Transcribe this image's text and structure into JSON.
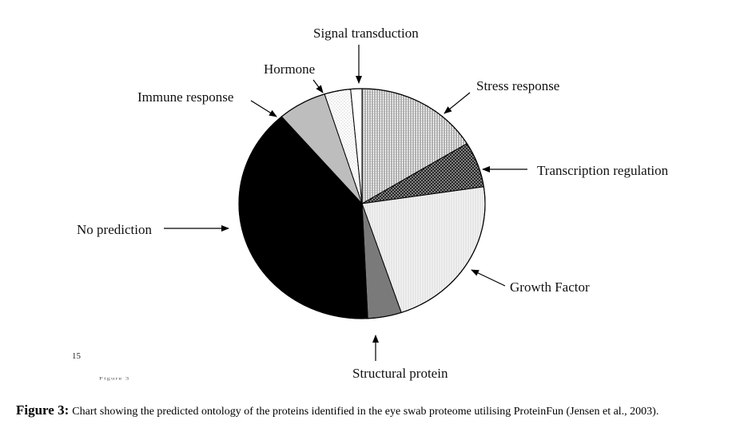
{
  "page_number": "15",
  "scan_artifact_text": "Figure 3",
  "caption": {
    "label": "Figure 3:",
    "text": "Chart showing the predicted ontology of the proteins identified in the eye swab proteome utilising ProteinFun (Jensen et al., 2003)."
  },
  "chart_data": {
    "type": "pie",
    "start_angle_deg": 0,
    "direction": "clockwise",
    "slices": [
      {
        "label": "Stress response",
        "value": 16.5,
        "fill": "vertical-hatch"
      },
      {
        "label": "Transcription regulation",
        "value": 6.5,
        "fill": "dark-crosshatch"
      },
      {
        "label": "Growth Factor",
        "value": 22.5,
        "fill": "light-dotted"
      },
      {
        "label": "Structural protein",
        "value": 4.5,
        "fill": "#7a7a7a"
      },
      {
        "label": "No prediction",
        "value": 40.0,
        "fill": "#000000"
      },
      {
        "label": "Immune response",
        "value": 6.5,
        "fill": "#bdbdbd"
      },
      {
        "label": "Hormone",
        "value": 3.5,
        "fill": "light-stipple"
      },
      {
        "label": "Signal transduction",
        "value": 1.5,
        "fill": "#ffffff"
      }
    ],
    "legend": "none",
    "title": ""
  }
}
